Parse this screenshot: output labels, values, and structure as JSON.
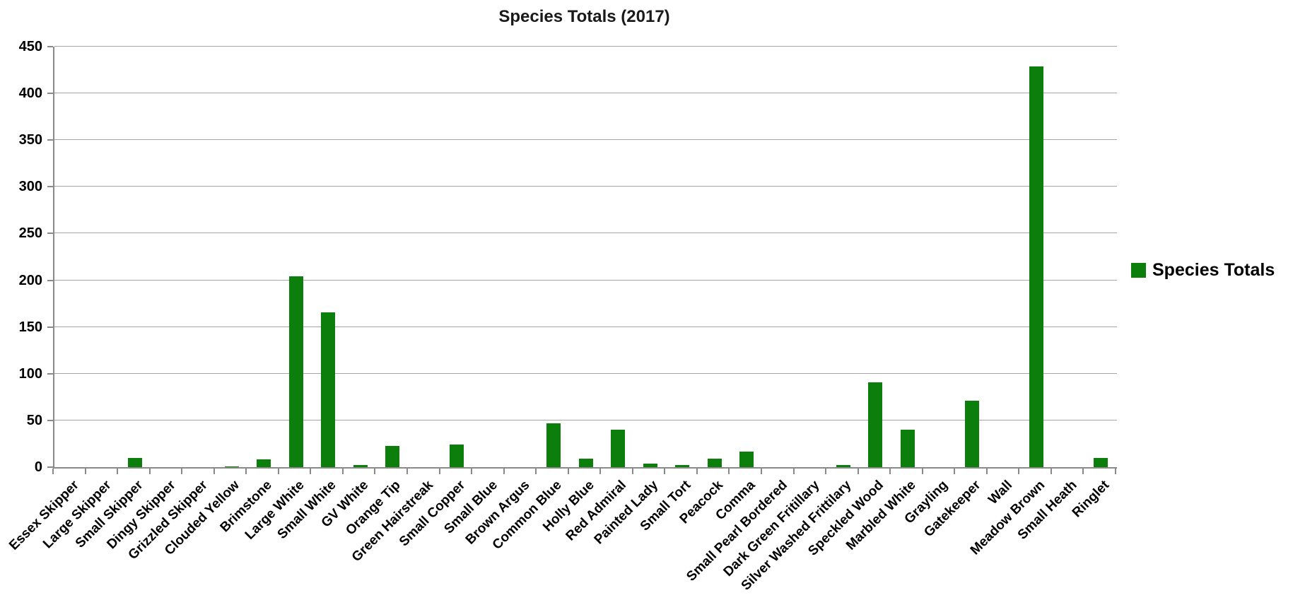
{
  "title": "Species Totals (2017)",
  "legend": {
    "label": "Species Totals"
  },
  "colors": {
    "bar": "#0b7e0b",
    "gridline": "#a6a6a6",
    "axis": "#8a8a8a",
    "text": "#000000"
  },
  "chart_data": {
    "type": "bar",
    "title": "Species Totals (2017)",
    "series_name": "Species Totals",
    "categories": [
      "Essex Skipper",
      "Large Skipper",
      "Small Skipper",
      "Dingy Skipper",
      "Grizzled Skipper",
      "Clouded Yellow",
      "Brimstone",
      "Large White",
      "Small White",
      "GV White",
      "Orange Tip",
      "Green Hairstreak",
      "Small Copper",
      "Small Blue",
      "Brown Argus",
      "Common Blue",
      "Holly Blue",
      "Red Admiral",
      "Painted Lady",
      "Small Tort",
      "Peacock",
      "Comma",
      "Small Pearl Bordered",
      "Dark Green Fritillary",
      "Silver Washed Frittilary",
      "Speckled Wood",
      "Marbled White",
      "Grayling",
      "Gatekeeper",
      "Wall",
      "Meadow Brown",
      "Small Heath",
      "Ringlet"
    ],
    "values": [
      0,
      0,
      10,
      0,
      0,
      1,
      8,
      204,
      166,
      2,
      23,
      0,
      24,
      0,
      0,
      47,
      9,
      40,
      4,
      2,
      9,
      17,
      0,
      0,
      2,
      91,
      40,
      0,
      71,
      0,
      429,
      0,
      10
    ],
    "xlabel": "",
    "ylabel": "",
    "ylim": [
      0,
      450
    ],
    "y_ticks": [
      0,
      50,
      100,
      150,
      200,
      250,
      300,
      350,
      400,
      450
    ],
    "grid": true,
    "legend_position": "right",
    "bar_color": "#0b7e0b"
  }
}
